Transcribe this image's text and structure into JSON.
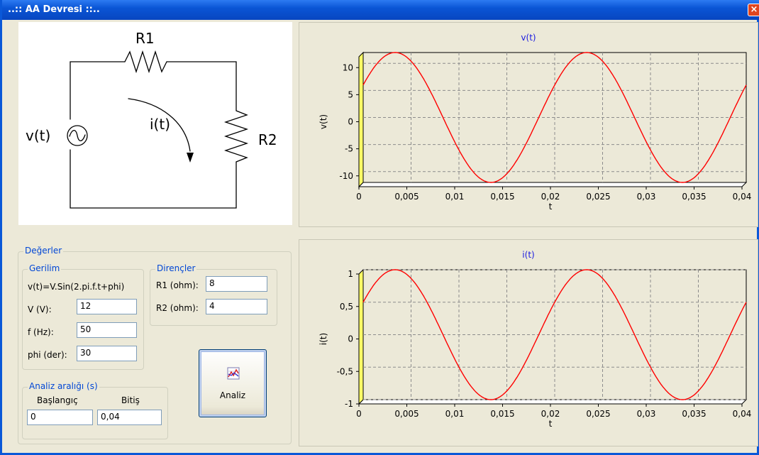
{
  "window": {
    "title": "..:: AA Devresi ::..",
    "close_glyph": "×"
  },
  "circuit": {
    "r1_label": "R1",
    "r2_label": "R2",
    "source_label": "v(t)",
    "current_label": "i(t)"
  },
  "values": {
    "group_label": "Değerler",
    "voltage": {
      "group_label": "Gerilim",
      "formula": "v(t)=V.Sin(2.pi.f.t+phi)",
      "v_label": "V (V):",
      "v_value": "12",
      "f_label": "f (Hz):",
      "f_value": "50",
      "phi_label": "phi (der):",
      "phi_value": "30"
    },
    "resistors": {
      "group_label": "Dirençler",
      "r1_label": "R1 (ohm):",
      "r1_value": "8",
      "r2_label": "R2 (ohm):",
      "r2_value": "4"
    },
    "range": {
      "group_label": "Analiz aralığı (s)",
      "start_label": "Başlangıç",
      "start_value": "0",
      "end_label": "Bitiş",
      "end_value": "0,04"
    }
  },
  "analyze_button": {
    "label": "Analiz",
    "icon": "chart-icon"
  },
  "colors": {
    "title_bar": "#0a55d5",
    "series": "#ff0000",
    "title_text": "#1a1ae0",
    "wall": "#ffff66"
  },
  "chart_data": [
    {
      "type": "line",
      "title": "v(t)",
      "xlabel": "t",
      "ylabel": "v(t)",
      "xlim": [
        0,
        0.04
      ],
      "ylim": [
        -12,
        12
      ],
      "x_ticks": [
        "0",
        "0,005",
        "0,01",
        "0,015",
        "0,02",
        "0,025",
        "0,03",
        "0,035",
        "0,04"
      ],
      "y_ticks": [
        "10",
        "5",
        "0",
        "-5",
        "-10"
      ],
      "y_tick_values": [
        10,
        5,
        0,
        -5,
        -10
      ],
      "series": [
        {
          "amplitude": 12,
          "frequency": 50,
          "phase_deg": 30
        }
      ],
      "grid": true
    },
    {
      "type": "line",
      "title": "i(t)",
      "xlabel": "t",
      "ylabel": "i(t)",
      "xlim": [
        0,
        0.04
      ],
      "ylim": [
        -1,
        1
      ],
      "x_ticks": [
        "0",
        "0,005",
        "0,01",
        "0,015",
        "0,02",
        "0,025",
        "0,03",
        "0,035",
        "0,04"
      ],
      "y_ticks": [
        "1",
        "0,5",
        "0",
        "-0,5",
        "-1"
      ],
      "y_tick_values": [
        1,
        0.5,
        0,
        -0.5,
        -1
      ],
      "series": [
        {
          "amplitude": 1,
          "frequency": 50,
          "phase_deg": 30
        }
      ],
      "grid": true
    }
  ]
}
